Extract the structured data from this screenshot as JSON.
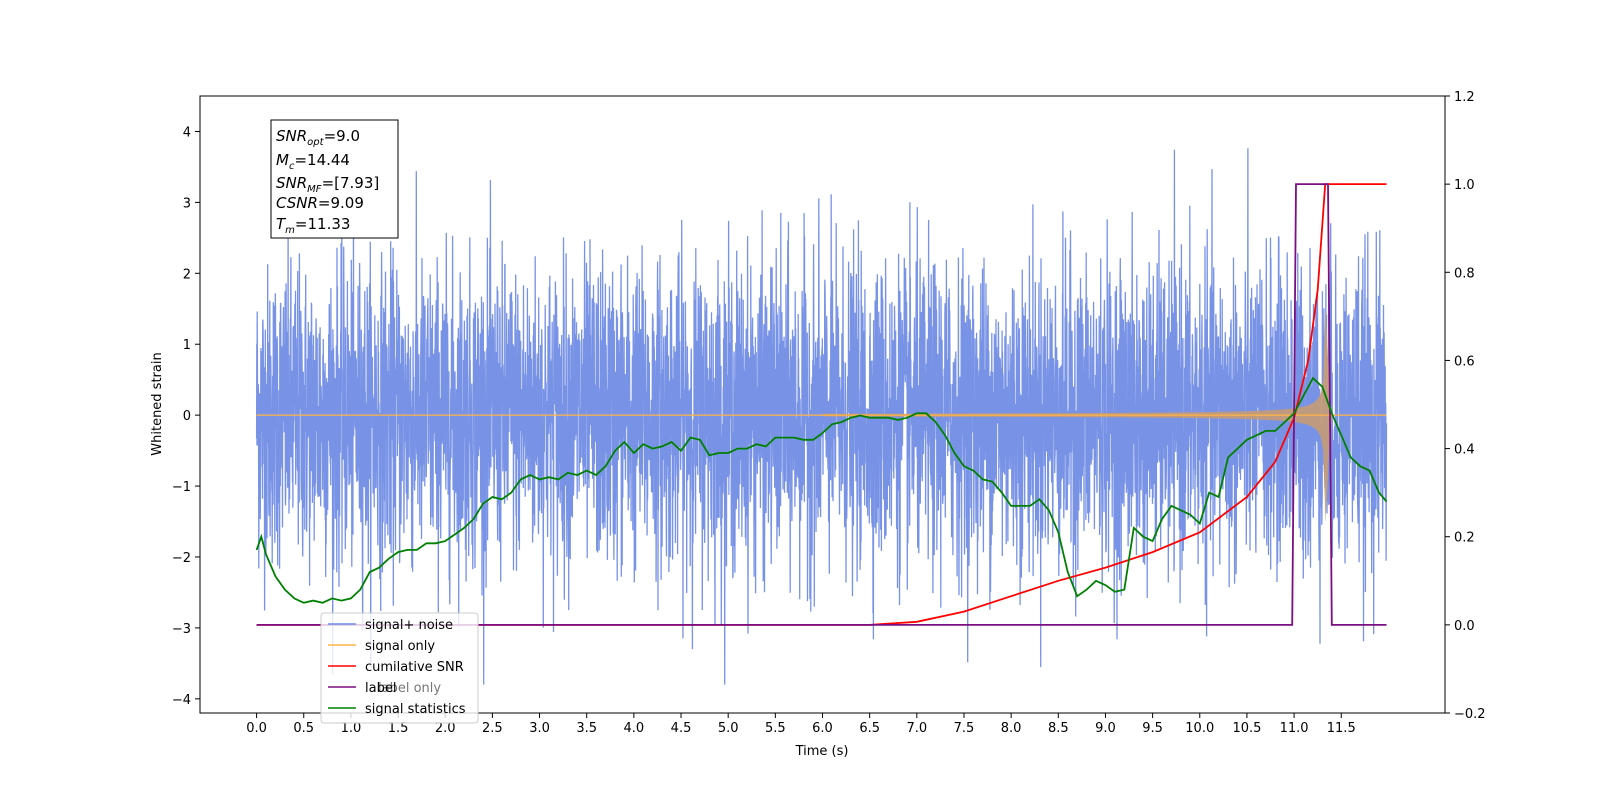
{
  "chart_data": {
    "type": "line",
    "xlabel": "Time (s)",
    "ylabel_left": "Whitened strain",
    "ylabel_right": "",
    "xlim": [
      -0.6,
      12.6
    ],
    "ylim_left": [
      -4.2,
      4.5
    ],
    "ylim_right": [
      -0.2,
      1.2
    ],
    "x_ticks": [
      "0.0",
      "0.5",
      "1.0",
      "1.5",
      "2.0",
      "2.5",
      "3.0",
      "3.5",
      "4.0",
      "4.5",
      "5.0",
      "5.5",
      "6.0",
      "6.5",
      "7.0",
      "7.5",
      "8.0",
      "8.5",
      "9.0",
      "9.5",
      "10.0",
      "10.5",
      "11.0",
      "11.5"
    ],
    "y_ticks_left": [
      "4",
      "3",
      "2",
      "1",
      "0",
      "−1",
      "−2",
      "−3",
      "−4"
    ],
    "y_ticks_right": [
      "1.2",
      "1.0",
      "0.8",
      "0.6",
      "0.4",
      "0.2",
      "0.0",
      "−0.2"
    ],
    "grid": false,
    "legend_position": "lower-left",
    "annotation": {
      "snr_opt": "9.0",
      "mc": "14.44",
      "snr_mf": "[7.93]",
      "csnr": "9.09",
      "tm": "11.33"
    },
    "series": [
      {
        "name": "signal+ noise",
        "color": "#6c8ae4",
        "axis": "left",
        "description": "whitened noisy strain, approx zero-mean unit variance over 0.0–12.0 s",
        "range_y": [
          -3.8,
          4.1
        ]
      },
      {
        "name": "signal only",
        "color": "#ffb347",
        "axis": "left",
        "chirp_end_time": 11.33,
        "chirp_peak_amplitude": 1.6
      },
      {
        "name": "cumilative SNR",
        "color": "#ff0000",
        "axis": "right",
        "x": [
          0.0,
          6.5,
          7.0,
          7.5,
          8.0,
          8.5,
          9.0,
          9.5,
          10.0,
          10.5,
          10.8,
          11.0,
          11.15,
          11.25,
          11.33,
          11.4,
          11.98
        ],
        "y": [
          0.0,
          0.0,
          0.007,
          0.03,
          0.065,
          0.1,
          0.13,
          0.165,
          0.21,
          0.29,
          0.37,
          0.47,
          0.6,
          0.76,
          1.0,
          1.0,
          1.0
        ]
      },
      {
        "name": "label",
        "color": "#7b0f82",
        "axis": "right",
        "x": [
          0.0,
          10.98,
          11.02,
          11.36,
          11.4,
          11.98
        ],
        "y": [
          0.0,
          0.0,
          1.0,
          1.0,
          0.0,
          0.0
        ]
      },
      {
        "name": "label only",
        "color": "#aaaaaa",
        "axis": "right",
        "x": [],
        "y": []
      },
      {
        "name": "signal statistics",
        "color": "#008000",
        "axis": "right",
        "x": [
          0.0,
          0.05,
          0.1,
          0.2,
          0.3,
          0.4,
          0.5,
          0.6,
          0.7,
          0.8,
          0.9,
          1.0,
          1.1,
          1.2,
          1.3,
          1.4,
          1.5,
          1.6,
          1.7,
          1.8,
          1.9,
          2.0,
          2.1,
          2.2,
          2.3,
          2.4,
          2.5,
          2.6,
          2.7,
          2.8,
          2.9,
          3.0,
          3.1,
          3.2,
          3.3,
          3.4,
          3.5,
          3.6,
          3.7,
          3.8,
          3.9,
          4.0,
          4.1,
          4.2,
          4.3,
          4.4,
          4.5,
          4.6,
          4.7,
          4.8,
          4.9,
          5.0,
          5.1,
          5.2,
          5.3,
          5.4,
          5.5,
          5.6,
          5.7,
          5.8,
          5.9,
          6.0,
          6.1,
          6.2,
          6.3,
          6.4,
          6.5,
          6.6,
          6.7,
          6.8,
          6.9,
          7.0,
          7.1,
          7.2,
          7.3,
          7.4,
          7.5,
          7.6,
          7.7,
          7.8,
          7.9,
          8.0,
          8.1,
          8.2,
          8.3,
          8.4,
          8.5,
          8.6,
          8.7,
          8.8,
          8.9,
          9.0,
          9.1,
          9.2,
          9.3,
          9.4,
          9.5,
          9.6,
          9.7,
          9.8,
          9.9,
          10.0,
          10.1,
          10.2,
          10.3,
          10.4,
          10.5,
          10.6,
          10.7,
          10.8,
          10.9,
          11.0,
          11.1,
          11.2,
          11.3,
          11.4,
          11.5,
          11.6,
          11.7,
          11.8,
          11.9,
          11.98
        ],
        "y": [
          0.17,
          0.2,
          0.16,
          0.11,
          0.08,
          0.06,
          0.05,
          0.055,
          0.05,
          0.06,
          0.055,
          0.06,
          0.08,
          0.12,
          0.13,
          0.15,
          0.165,
          0.17,
          0.17,
          0.185,
          0.185,
          0.19,
          0.205,
          0.22,
          0.24,
          0.275,
          0.29,
          0.285,
          0.3,
          0.33,
          0.34,
          0.33,
          0.335,
          0.33,
          0.345,
          0.34,
          0.35,
          0.34,
          0.36,
          0.395,
          0.415,
          0.39,
          0.41,
          0.4,
          0.405,
          0.415,
          0.395,
          0.425,
          0.42,
          0.385,
          0.39,
          0.39,
          0.4,
          0.4,
          0.41,
          0.405,
          0.425,
          0.425,
          0.425,
          0.42,
          0.42,
          0.435,
          0.455,
          0.46,
          0.47,
          0.475,
          0.47,
          0.47,
          0.47,
          0.465,
          0.47,
          0.48,
          0.48,
          0.46,
          0.43,
          0.39,
          0.36,
          0.35,
          0.33,
          0.325,
          0.3,
          0.27,
          0.27,
          0.27,
          0.285,
          0.26,
          0.21,
          0.12,
          0.065,
          0.08,
          0.1,
          0.09,
          0.075,
          0.08,
          0.22,
          0.2,
          0.19,
          0.24,
          0.27,
          0.26,
          0.25,
          0.23,
          0.3,
          0.29,
          0.38,
          0.4,
          0.42,
          0.43,
          0.44,
          0.44,
          0.46,
          0.48,
          0.52,
          0.56,
          0.54,
          0.48,
          0.43,
          0.38,
          0.36,
          0.35,
          0.3,
          0.28
        ]
      }
    ]
  }
}
